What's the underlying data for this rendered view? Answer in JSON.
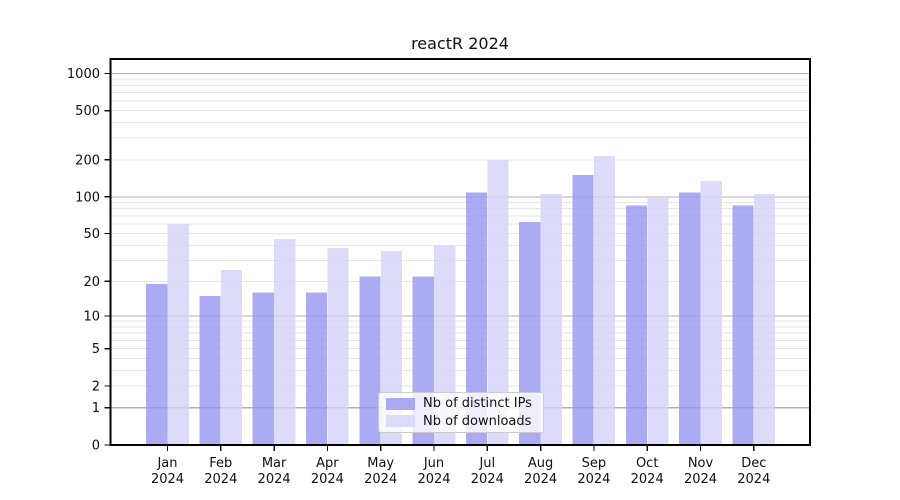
{
  "title": "reactR 2024",
  "legend": {
    "items": [
      {
        "label": "Nb of distinct IPs"
      },
      {
        "label": "Nb of downloads"
      }
    ]
  },
  "colors": {
    "distinct_ips": "#9898f2",
    "downloads": "#d4d4f9",
    "grid_major": "#b0b0b0",
    "grid_minor": "#e6e6e6",
    "spine": "#000000",
    "text": "#111111",
    "legend_border": "#cccccc"
  },
  "y_axis": {
    "tick_labels": [
      0,
      1,
      2,
      5,
      10,
      20,
      50,
      100,
      200,
      500,
      1000
    ]
  },
  "x_axis": {
    "year_line": "2024",
    "months": [
      "Jan",
      "Feb",
      "Mar",
      "Apr",
      "May",
      "Jun",
      "Jul",
      "Aug",
      "Sep",
      "Oct",
      "Nov",
      "Dec"
    ]
  },
  "chart_data": {
    "type": "bar",
    "title": "reactR 2024",
    "categories": [
      "Jan 2024",
      "Feb 2024",
      "Mar 2024",
      "Apr 2024",
      "May 2024",
      "Jun 2024",
      "Jul 2024",
      "Aug 2024",
      "Sep 2024",
      "Oct 2024",
      "Nov 2024",
      "Dec 2024"
    ],
    "series": [
      {
        "name": "Nb of distinct IPs",
        "color": "#9898f2",
        "values": [
          19,
          15,
          16,
          16,
          22,
          22,
          108,
          62,
          150,
          85,
          108,
          85
        ]
      },
      {
        "name": "Nb of downloads",
        "color": "#d4d4f9",
        "values": [
          60,
          25,
          45,
          38,
          36,
          40,
          200,
          105,
          215,
          100,
          135,
          105
        ]
      }
    ],
    "bar_opacity": 0.82,
    "yscale": "log1p",
    "yticks": [
      0,
      1,
      2,
      5,
      10,
      20,
      50,
      100,
      200,
      500,
      1000
    ],
    "ylim": [
      0,
      1000
    ],
    "grid": true,
    "legend_position": "lower center"
  }
}
